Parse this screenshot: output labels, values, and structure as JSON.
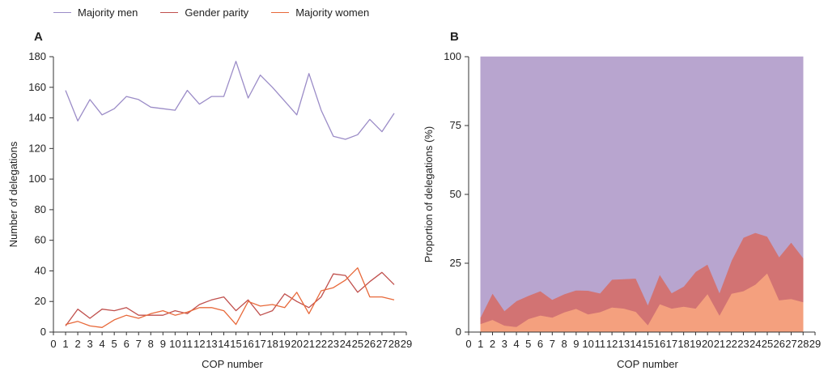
{
  "legend": {
    "men": {
      "label": "Majority men",
      "color": "#9b8cc7"
    },
    "parity": {
      "label": "Gender parity",
      "color": "#c0504d"
    },
    "women": {
      "label": "Majority women",
      "color": "#e8693a"
    }
  },
  "area_colors": {
    "men": "#b8a5cf",
    "parity": "#d27373",
    "women": "#f4a07e"
  },
  "chart_data": [
    {
      "type": "line",
      "panel_label": "A",
      "xlabel": "COP number",
      "ylabel": "Number of delegations",
      "xlim": [
        0,
        29
      ],
      "ylim": [
        0,
        180
      ],
      "xticks": [
        "0",
        "1",
        "2",
        "3",
        "4",
        "5",
        "6",
        "7",
        "8",
        "9",
        "10",
        "11",
        "12",
        "13",
        "14",
        "15",
        "16",
        "17",
        "18",
        "19",
        "20",
        "21",
        "22",
        "23",
        "24",
        "25",
        "26",
        "27",
        "28",
        "29"
      ],
      "yticks": [
        "0",
        "20",
        "40",
        "60",
        "80",
        "100",
        "120",
        "140",
        "160",
        "180"
      ],
      "x": [
        1,
        2,
        3,
        4,
        5,
        6,
        7,
        8,
        9,
        10,
        11,
        12,
        13,
        14,
        15,
        16,
        17,
        18,
        19,
        20,
        21,
        22,
        23,
        24,
        25,
        26,
        27,
        28
      ],
      "series": [
        {
          "name": "Majority men",
          "values": [
            158,
            138,
            152,
            142,
            146,
            154,
            152,
            147,
            146,
            145,
            158,
            149,
            154,
            154,
            177,
            153,
            168,
            160,
            151,
            142,
            169,
            145,
            128,
            126,
            129,
            139,
            131,
            143
          ]
        },
        {
          "name": "Gender parity",
          "values": [
            4,
            15,
            9,
            15,
            14,
            16,
            11,
            11,
            11,
            14,
            12,
            18,
            21,
            23,
            14,
            21,
            11,
            14,
            25,
            20,
            16,
            23,
            38,
            37,
            26,
            33,
            39,
            31
          ]
        },
        {
          "name": "Majority women",
          "values": [
            5,
            7,
            4,
            3,
            8,
            11,
            9,
            12,
            14,
            11,
            13,
            16,
            16,
            14,
            5,
            20,
            17,
            18,
            16,
            26,
            12,
            27,
            29,
            34,
            42,
            23,
            23,
            21
          ]
        }
      ]
    },
    {
      "type": "area",
      "stacked": true,
      "panel_label": "B",
      "xlabel": "COP number",
      "ylabel": "Proportion of delegations (%)",
      "xlim": [
        0,
        29
      ],
      "ylim": [
        0,
        100
      ],
      "xticks": [
        "0",
        "1",
        "2",
        "3",
        "4",
        "5",
        "6",
        "7",
        "8",
        "9",
        "10",
        "11",
        "12",
        "13",
        "14",
        "15",
        "16",
        "17",
        "18",
        "19",
        "20",
        "21",
        "22",
        "23",
        "24",
        "25",
        "26",
        "27",
        "28",
        "29"
      ],
      "yticks": [
        "0",
        "25",
        "50",
        "75",
        "100"
      ],
      "x": [
        1,
        2,
        3,
        4,
        5,
        6,
        7,
        8,
        9,
        10,
        11,
        12,
        13,
        14,
        15,
        16,
        17,
        18,
        19,
        20,
        21,
        22,
        23,
        24,
        25,
        26,
        27,
        28
      ],
      "series": [
        {
          "name": "Majority women",
          "values": [
            3.0,
            4.5,
            2.4,
            1.9,
            4.8,
            6.1,
            5.3,
            7.2,
            8.5,
            6.5,
            7.3,
            9.0,
            8.6,
            7.4,
            2.6,
            10.2,
            8.6,
            9.3,
            8.6,
            13.9,
            6.1,
            14.0,
            14.9,
            17.3,
            21.4,
            11.6,
            12.1,
            10.9
          ]
        },
        {
          "name": "Gender parity",
          "values": [
            2.4,
            9.6,
            5.3,
            9.4,
            8.4,
            8.8,
            6.5,
            6.6,
            6.7,
            8.6,
            6.8,
            10.1,
            10.7,
            12.1,
            7.3,
            10.7,
            5.6,
            7.3,
            13.3,
            10.7,
            8.2,
            11.9,
            19.4,
            18.8,
            13.3,
            15.7,
            20.5,
            16.1
          ]
        },
        {
          "name": "Majority men",
          "values": [
            94.6,
            85.9,
            92.3,
            88.7,
            86.8,
            85.1,
            88.2,
            86.2,
            84.8,
            84.9,
            85.9,
            80.9,
            80.7,
            80.5,
            90.1,
            79.1,
            85.8,
            83.4,
            78.1,
            75.4,
            85.7,
            74.1,
            65.7,
            63.9,
            65.3,
            72.7,
            67.4,
            73.0
          ]
        }
      ]
    }
  ]
}
